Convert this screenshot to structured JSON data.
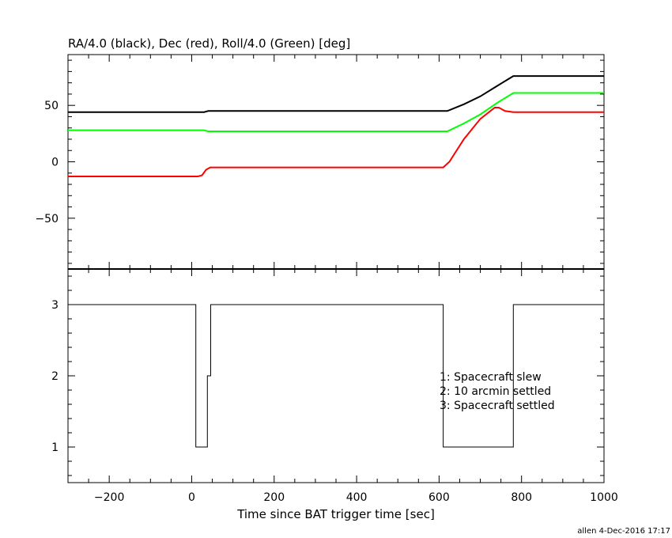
{
  "chart_data": [
    {
      "type": "line",
      "title": "RA/4.0 (black), Dec (red), Roll/4.0 (Green) [deg]",
      "xlabel": "",
      "ylabel": "",
      "xlim": [
        -300,
        1000
      ],
      "ylim": [
        -95,
        95
      ],
      "yticks": [
        -50,
        0,
        50
      ],
      "grid": false,
      "series": [
        {
          "color": "#000000",
          "points": [
            [
              -300,
              44
            ],
            [
              30,
              44
            ],
            [
              40,
              45
            ],
            [
              620,
              45
            ],
            [
              660,
              51
            ],
            [
              700,
              58
            ],
            [
              740,
              67
            ],
            [
              780,
              76
            ],
            [
              1000,
              76
            ]
          ]
        },
        {
          "color": "#ff0000",
          "points": [
            [
              -300,
              -13
            ],
            [
              15,
              -13
            ],
            [
              25,
              -12
            ],
            [
              35,
              -7
            ],
            [
              45,
              -5
            ],
            [
              610,
              -5
            ],
            [
              625,
              0
            ],
            [
              660,
              20
            ],
            [
              700,
              38
            ],
            [
              735,
              48
            ],
            [
              745,
              48
            ],
            [
              760,
              45
            ],
            [
              780,
              44
            ],
            [
              1000,
              44
            ]
          ]
        },
        {
          "color": "#00ff00",
          "points": [
            [
              -300,
              28
            ],
            [
              30,
              28
            ],
            [
              40,
              27
            ],
            [
              620,
              27
            ],
            [
              660,
              34
            ],
            [
              700,
              42
            ],
            [
              740,
              52
            ],
            [
              780,
              61
            ],
            [
              1000,
              61
            ]
          ]
        }
      ]
    },
    {
      "type": "line",
      "step": true,
      "xlabel": "Time since BAT trigger time [sec]",
      "ylabel": "",
      "xlim": [
        -300,
        1000
      ],
      "ylim": [
        0.5,
        3.5
      ],
      "xticks": [
        -200,
        0,
        200,
        400,
        600,
        800,
        1000
      ],
      "yticks": [
        1,
        2,
        3
      ],
      "series": [
        {
          "color": "#000000",
          "points": [
            [
              -300,
              3
            ],
            [
              10,
              3
            ],
            [
              10,
              1
            ],
            [
              38,
              1
            ],
            [
              38,
              2
            ],
            [
              46,
              2
            ],
            [
              46,
              3
            ],
            [
              610,
              3
            ],
            [
              610,
              1
            ],
            [
              780,
              1
            ],
            [
              780,
              3
            ],
            [
              1000,
              3
            ]
          ]
        }
      ],
      "annotations": [
        "1: Spacecraft slew",
        "2: 10 arcmin settled",
        "3: Spacecraft settled"
      ]
    }
  ],
  "footer": "allen  4-Dec-2016 17:17"
}
